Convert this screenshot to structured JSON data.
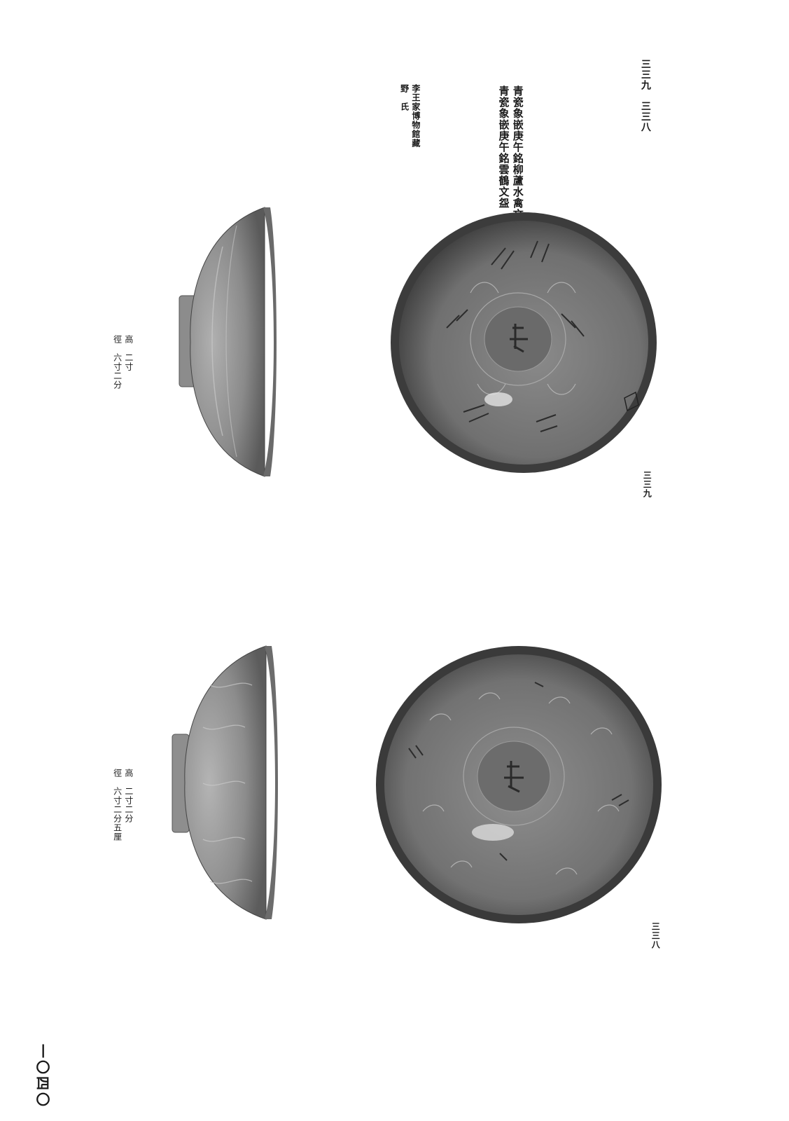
{
  "captions": {
    "plate_numbers": "三三九　三三八",
    "titles": [
      "青瓷象嵌庚午銘柳蘆水禽文盌",
      "青瓷象嵌庚午銘雲鶴文盌"
    ],
    "owner": [
      "李王家博物館藏",
      "野　氏"
    ]
  },
  "dimensions": [
    {
      "id": "339",
      "text": [
        "高　二寸",
        "徑　六寸二分"
      ]
    },
    {
      "id": "338",
      "text": [
        "高　二寸二分",
        "徑　六寸二分五厘"
      ]
    }
  ],
  "plate_labels": {
    "top": "三三九",
    "bottom": "三三八"
  },
  "page_number": "一〇四〇",
  "icons": {
    "bowl_339_side": "bowl-side-photo",
    "bowl_339_top": "bowl-top-photo",
    "bowl_338_side": "bowl-side-photo",
    "bowl_338_top": "bowl-top-photo"
  },
  "colors": {
    "ink": "#1a1a1a",
    "celadon_dark": "#3f3f3f",
    "celadon_mid": "#6e6e6e",
    "celadon_light": "#9a9a9a"
  }
}
